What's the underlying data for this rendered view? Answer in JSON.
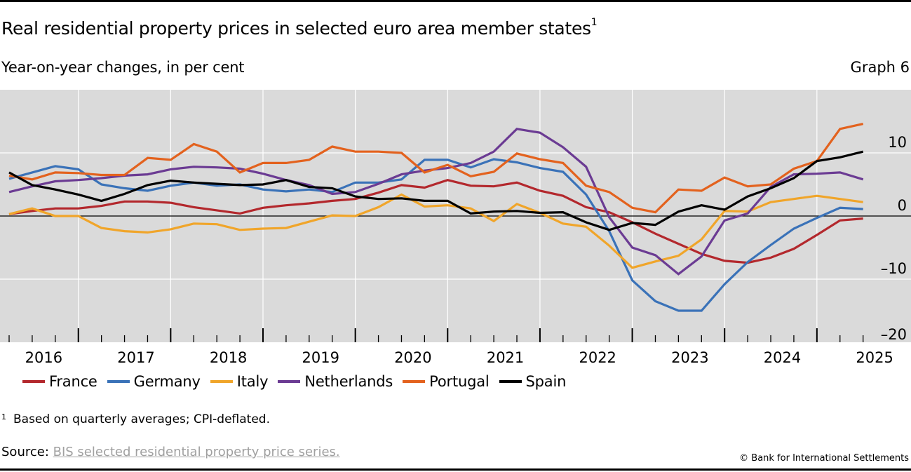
{
  "header": {
    "title": "Real residential property prices in selected euro area member states",
    "title_footnote_marker": "1",
    "subtitle": "Year-on-year changes, in per cent",
    "graph_number": "Graph 6"
  },
  "footer": {
    "footnote_marker": "1",
    "footnote_text": "Based on quarterly averages; CPI-deflated.",
    "source_label": "Source:",
    "source_link_text": "BIS selected residential property price series.",
    "copyright": "© Bank for International Settlements"
  },
  "chart_data": {
    "type": "line",
    "title": "Real residential property prices in selected euro area member states",
    "xlabel": "",
    "ylabel": "Year-on-year changes, in per cent",
    "x_frequency": "quarterly",
    "x_start": "2016-Q1",
    "x_end": "2025-Q2",
    "x": [
      "2016-Q1",
      "2016-Q2",
      "2016-Q3",
      "2016-Q4",
      "2017-Q1",
      "2017-Q2",
      "2017-Q3",
      "2017-Q4",
      "2018-Q1",
      "2018-Q2",
      "2018-Q3",
      "2018-Q4",
      "2019-Q1",
      "2019-Q2",
      "2019-Q3",
      "2019-Q4",
      "2020-Q1",
      "2020-Q2",
      "2020-Q3",
      "2020-Q4",
      "2021-Q1",
      "2021-Q2",
      "2021-Q3",
      "2021-Q4",
      "2022-Q1",
      "2022-Q2",
      "2022-Q3",
      "2022-Q4",
      "2023-Q1",
      "2023-Q2",
      "2023-Q3",
      "2023-Q4",
      "2024-Q1",
      "2024-Q2",
      "2024-Q3",
      "2024-Q4",
      "2025-Q1",
      "2025-Q2"
    ],
    "x_tick_labels": [
      "2016",
      "2017",
      "2018",
      "2019",
      "2020",
      "2021",
      "2022",
      "2023",
      "2024",
      "2025"
    ],
    "y_tick_labels": [
      "10",
      "0",
      "–10",
      "–20"
    ],
    "y_ticks": [
      10,
      0,
      -10,
      -20
    ],
    "ylim": [
      -20,
      20
    ],
    "grid": true,
    "zero_line": true,
    "y_axis_side": "right",
    "legend_position": "bottom",
    "series": [
      {
        "name": "France",
        "color": "#B3282D",
        "values": [
          0.3,
          0.8,
          1.2,
          1.2,
          1.6,
          2.3,
          2.3,
          2.1,
          1.4,
          0.9,
          0.4,
          1.3,
          1.7,
          2.0,
          2.4,
          2.7,
          3.7,
          4.9,
          4.5,
          5.7,
          4.8,
          4.7,
          5.3,
          4.0,
          3.2,
          1.4,
          0.6,
          -1.0,
          -2.8,
          -4.4,
          -6.0,
          -7.1,
          -7.4,
          -6.6,
          -5.2,
          -3.0,
          -0.7,
          -0.4
        ]
      },
      {
        "name": "Germany",
        "color": "#3A72B8",
        "values": [
          5.9,
          6.9,
          7.9,
          7.4,
          5.0,
          4.4,
          4.0,
          4.8,
          5.3,
          4.8,
          5.0,
          4.2,
          3.9,
          4.2,
          3.8,
          5.3,
          5.3,
          5.8,
          8.9,
          8.9,
          7.7,
          9.0,
          8.5,
          7.6,
          7.0,
          3.4,
          -2.4,
          -10.2,
          -13.5,
          -15.0,
          -15.0,
          -10.8,
          -7.3,
          -4.6,
          -2.0,
          -0.3,
          1.3,
          1.1
        ]
      },
      {
        "name": "Italy",
        "color": "#F0A52A",
        "values": [
          0.3,
          1.2,
          0.0,
          0.0,
          -1.9,
          -2.4,
          -2.6,
          -2.1,
          -1.2,
          -1.3,
          -2.2,
          -2.0,
          -1.9,
          -0.9,
          0.1,
          0.0,
          1.4,
          3.4,
          1.5,
          1.7,
          1.2,
          -0.8,
          1.9,
          0.5,
          -1.2,
          -1.7,
          -4.7,
          -8.2,
          -7.2,
          -6.3,
          -3.7,
          0.8,
          0.7,
          2.2,
          2.7,
          3.2,
          2.7,
          2.2
        ]
      },
      {
        "name": "Netherlands",
        "color": "#6B3B93",
        "values": [
          3.8,
          4.7,
          5.5,
          5.7,
          6.0,
          6.4,
          6.6,
          7.4,
          7.8,
          7.7,
          7.5,
          6.7,
          5.7,
          4.9,
          3.5,
          3.8,
          5.1,
          6.6,
          7.2,
          7.6,
          8.4,
          10.2,
          13.8,
          13.2,
          10.9,
          7.8,
          -0.2,
          -5.0,
          -6.2,
          -9.2,
          -6.4,
          -0.7,
          0.4,
          4.6,
          6.6,
          6.7,
          6.9,
          5.8
        ]
      },
      {
        "name": "Portugal",
        "color": "#E3621E",
        "values": [
          6.4,
          5.8,
          6.9,
          6.8,
          6.5,
          6.5,
          9.2,
          8.9,
          11.4,
          10.2,
          6.9,
          8.4,
          8.4,
          8.9,
          11.0,
          10.2,
          10.2,
          10.0,
          6.9,
          8.1,
          6.3,
          7.0,
          9.9,
          9.0,
          8.4,
          4.8,
          3.8,
          1.3,
          0.6,
          4.2,
          4.0,
          6.1,
          4.7,
          5.0,
          7.5,
          8.7,
          13.8,
          14.6
        ]
      },
      {
        "name": "Spain",
        "color": "#000000",
        "values": [
          6.9,
          4.9,
          4.2,
          3.4,
          2.4,
          3.5,
          4.9,
          5.6,
          5.3,
          5.1,
          4.9,
          5.0,
          5.7,
          4.6,
          4.4,
          3.1,
          2.7,
          2.8,
          2.4,
          2.4,
          0.4,
          0.7,
          0.8,
          0.5,
          0.6,
          -1.0,
          -2.2,
          -1.1,
          -1.4,
          0.7,
          1.7,
          1.0,
          3.1,
          4.4,
          6.0,
          8.7,
          9.3,
          10.2
        ]
      }
    ],
    "colors": {
      "plot_background": "#DADADA",
      "gridline": "#FFFFFF",
      "zero_line": "#000000"
    }
  }
}
